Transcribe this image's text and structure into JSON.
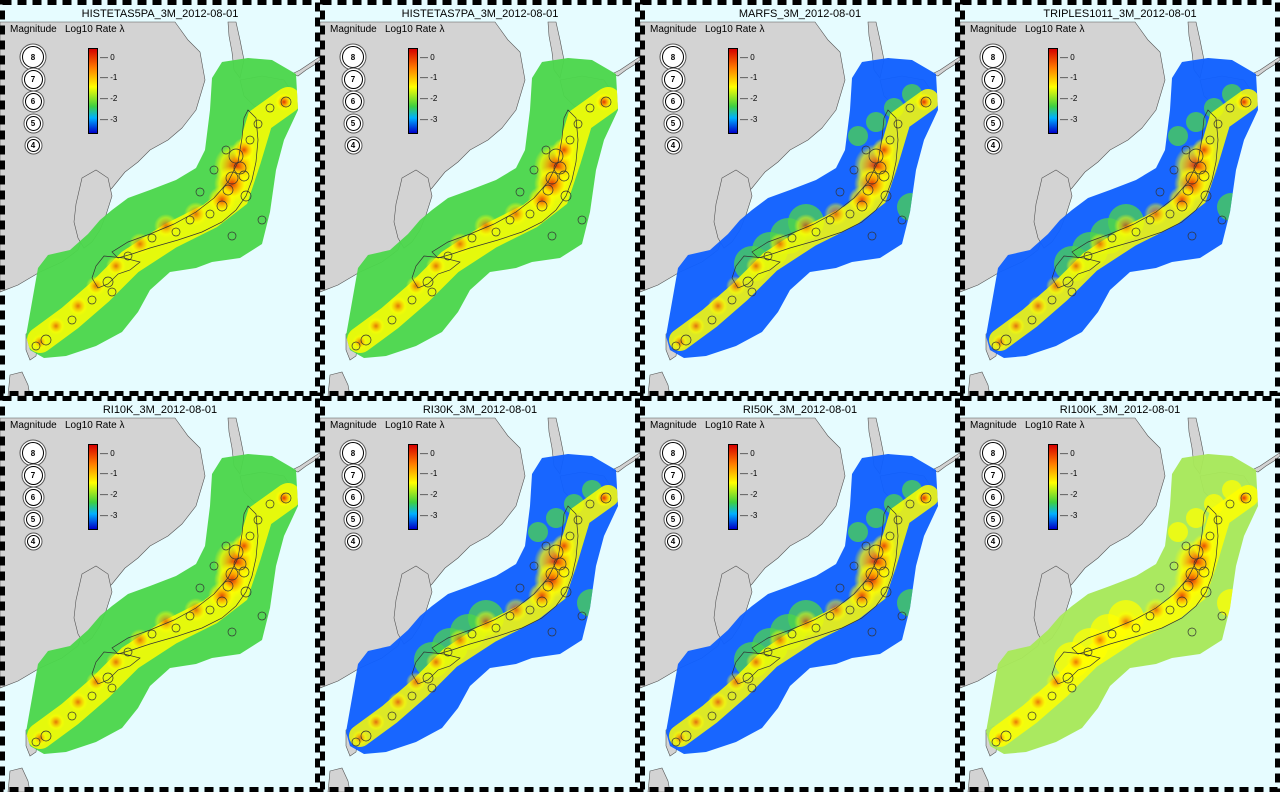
{
  "panels": [
    {
      "title": "HISTETAS5PA_3M_2012-08-01",
      "palette": "green"
    },
    {
      "title": "HISTETAS7PA_3M_2012-08-01",
      "palette": "green"
    },
    {
      "title": "MARFS_3M_2012-08-01",
      "palette": "blue"
    },
    {
      "title": "TRIPLES1011_3M_2012-08-01",
      "palette": "blue"
    },
    {
      "title": "RI10K_3M_2012-08-01",
      "palette": "green"
    },
    {
      "title": "RI30K_3M_2012-08-01",
      "palette": "blue"
    },
    {
      "title": "RI50K_3M_2012-08-01",
      "palette": "blue"
    },
    {
      "title": "RI100K_3M_2012-08-01",
      "palette": "mixed"
    }
  ],
  "legend": {
    "magnitude_label": "Magnitude",
    "rate_label": "Log10 Rate λ",
    "magnitudes": [
      "8",
      "7",
      "6",
      "5",
      "4"
    ],
    "colorbar_ticks": [
      "0",
      "-1",
      "-2",
      "-3"
    ]
  },
  "colors": {
    "sea": "#e6fcff",
    "land": "#d3d3d3",
    "red": "#e02000",
    "orange": "#ff9a00",
    "yellow": "#ffff00",
    "green": "#4cd64c",
    "light_green": "#a8e85a",
    "blue": "#1060ff",
    "dark_blue": "#0010d0"
  }
}
